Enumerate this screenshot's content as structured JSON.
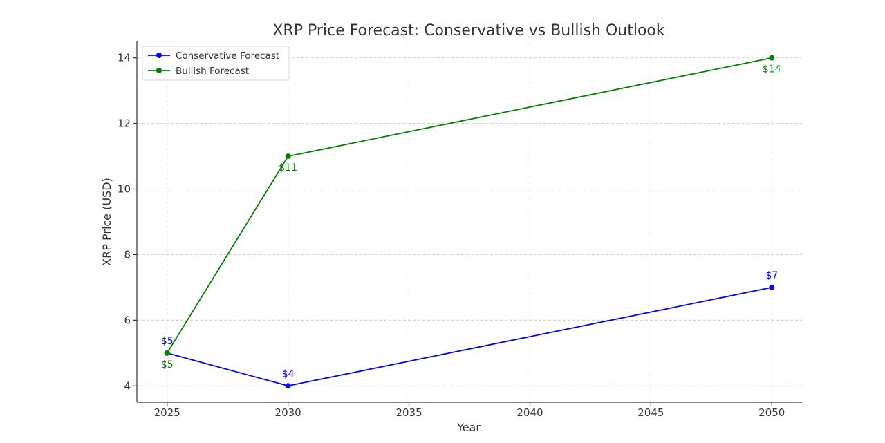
{
  "chart_data": {
    "type": "line",
    "title": "XRP Price Forecast: Conservative vs Bullish Outlook",
    "xlabel": "Year",
    "ylabel": "XRP Price (USD)",
    "xlim": [
      2023.75,
      2051.25
    ],
    "ylim": [
      3.5,
      14.5
    ],
    "xticks": [
      2025,
      2030,
      2035,
      2040,
      2045,
      2050
    ],
    "yticks": [
      4,
      6,
      8,
      10,
      12,
      14
    ],
    "xtick_labels": [
      "2025",
      "2030",
      "2035",
      "2040",
      "2045",
      "2050"
    ],
    "ytick_labels": [
      "4",
      "6",
      "8",
      "10",
      "12",
      "14"
    ],
    "grid": true,
    "legend_position": "top-left",
    "series": [
      {
        "name": "Conservative Forecast",
        "color": "#0000ff",
        "label_placement": "above",
        "x": [
          2025,
          2030,
          2050
        ],
        "y": [
          5,
          4,
          7
        ],
        "point_labels": [
          "$5",
          "$4",
          "$7"
        ]
      },
      {
        "name": "Bullish Forecast",
        "color": "#008000",
        "label_placement": "below",
        "x": [
          2025,
          2030,
          2050
        ],
        "y": [
          5,
          11,
          14
        ],
        "point_labels": [
          "$5",
          "$11",
          "$14"
        ]
      }
    ]
  }
}
